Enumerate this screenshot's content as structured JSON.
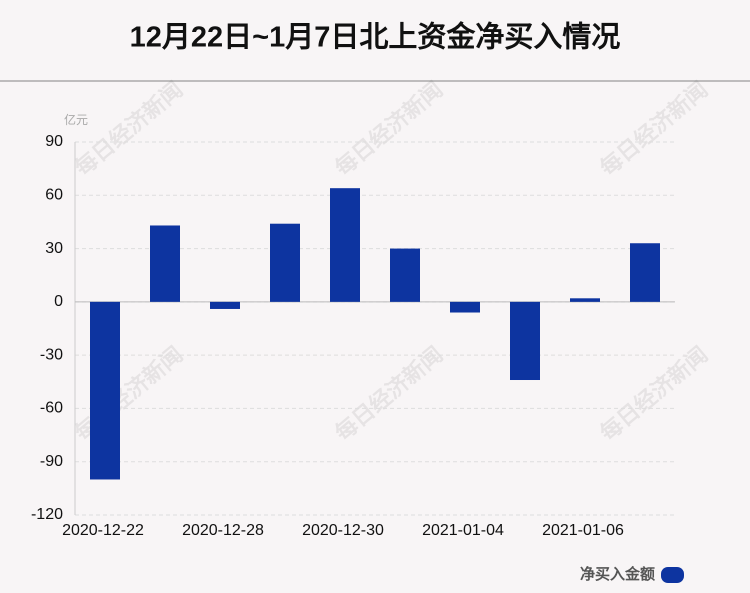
{
  "chart_data": {
    "type": "bar",
    "title": "12月22日~1月7日北上资金净买入情况",
    "y_unit": "亿元",
    "watermark": "每日经济新闻",
    "categories": [
      "2020-12-22",
      null,
      "2020-12-28",
      null,
      "2020-12-30",
      null,
      "2021-01-04",
      null,
      "2021-01-06",
      null
    ],
    "series": [
      {
        "name": "净买入金额",
        "color": "#0d34a0",
        "values": [
          -100,
          43,
          -4,
          44,
          64,
          30,
          -6,
          -44,
          2,
          33
        ]
      }
    ],
    "ylim": [
      -120,
      90
    ],
    "yticks": [
      -120,
      -90,
      -60,
      -30,
      0,
      30,
      60,
      90
    ],
    "grid": true,
    "legend": "bottom-right"
  }
}
